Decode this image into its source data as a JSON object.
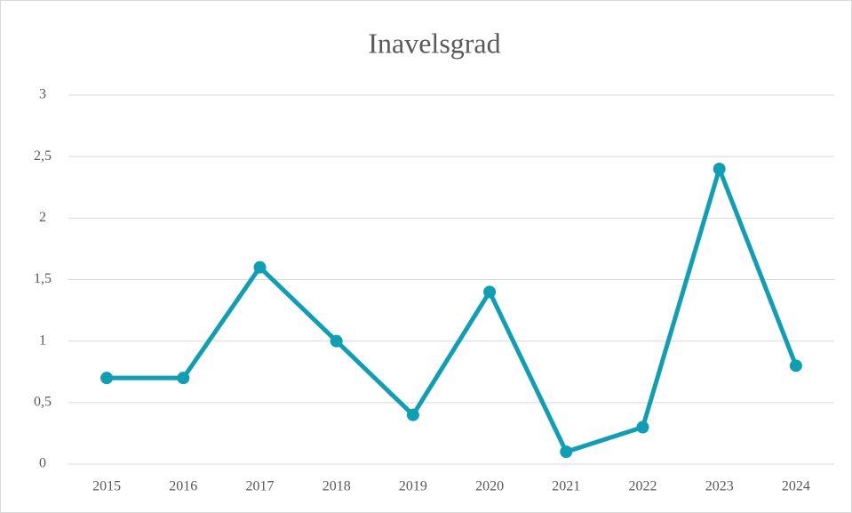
{
  "chart_data": {
    "type": "line",
    "title": "Inavelsgrad",
    "categories": [
      "2015",
      "2016",
      "2017",
      "2018",
      "2019",
      "2020",
      "2021",
      "2022",
      "2023",
      "2024"
    ],
    "series": [
      {
        "name": "Inavelsgrad",
        "color": "#0f9fb4",
        "values": [
          0.7,
          0.7,
          1.6,
          1.0,
          0.4,
          1.4,
          0.1,
          0.3,
          2.4,
          0.8
        ]
      }
    ],
    "ylim": [
      0,
      3
    ],
    "yticks": [
      0,
      {
        "value": 0.5,
        "label": "0,5"
      },
      1,
      {
        "value": 1.5,
        "label": "1,5"
      },
      2,
      {
        "value": 2.5,
        "label": "2,5"
      },
      3
    ],
    "grid": true
  }
}
